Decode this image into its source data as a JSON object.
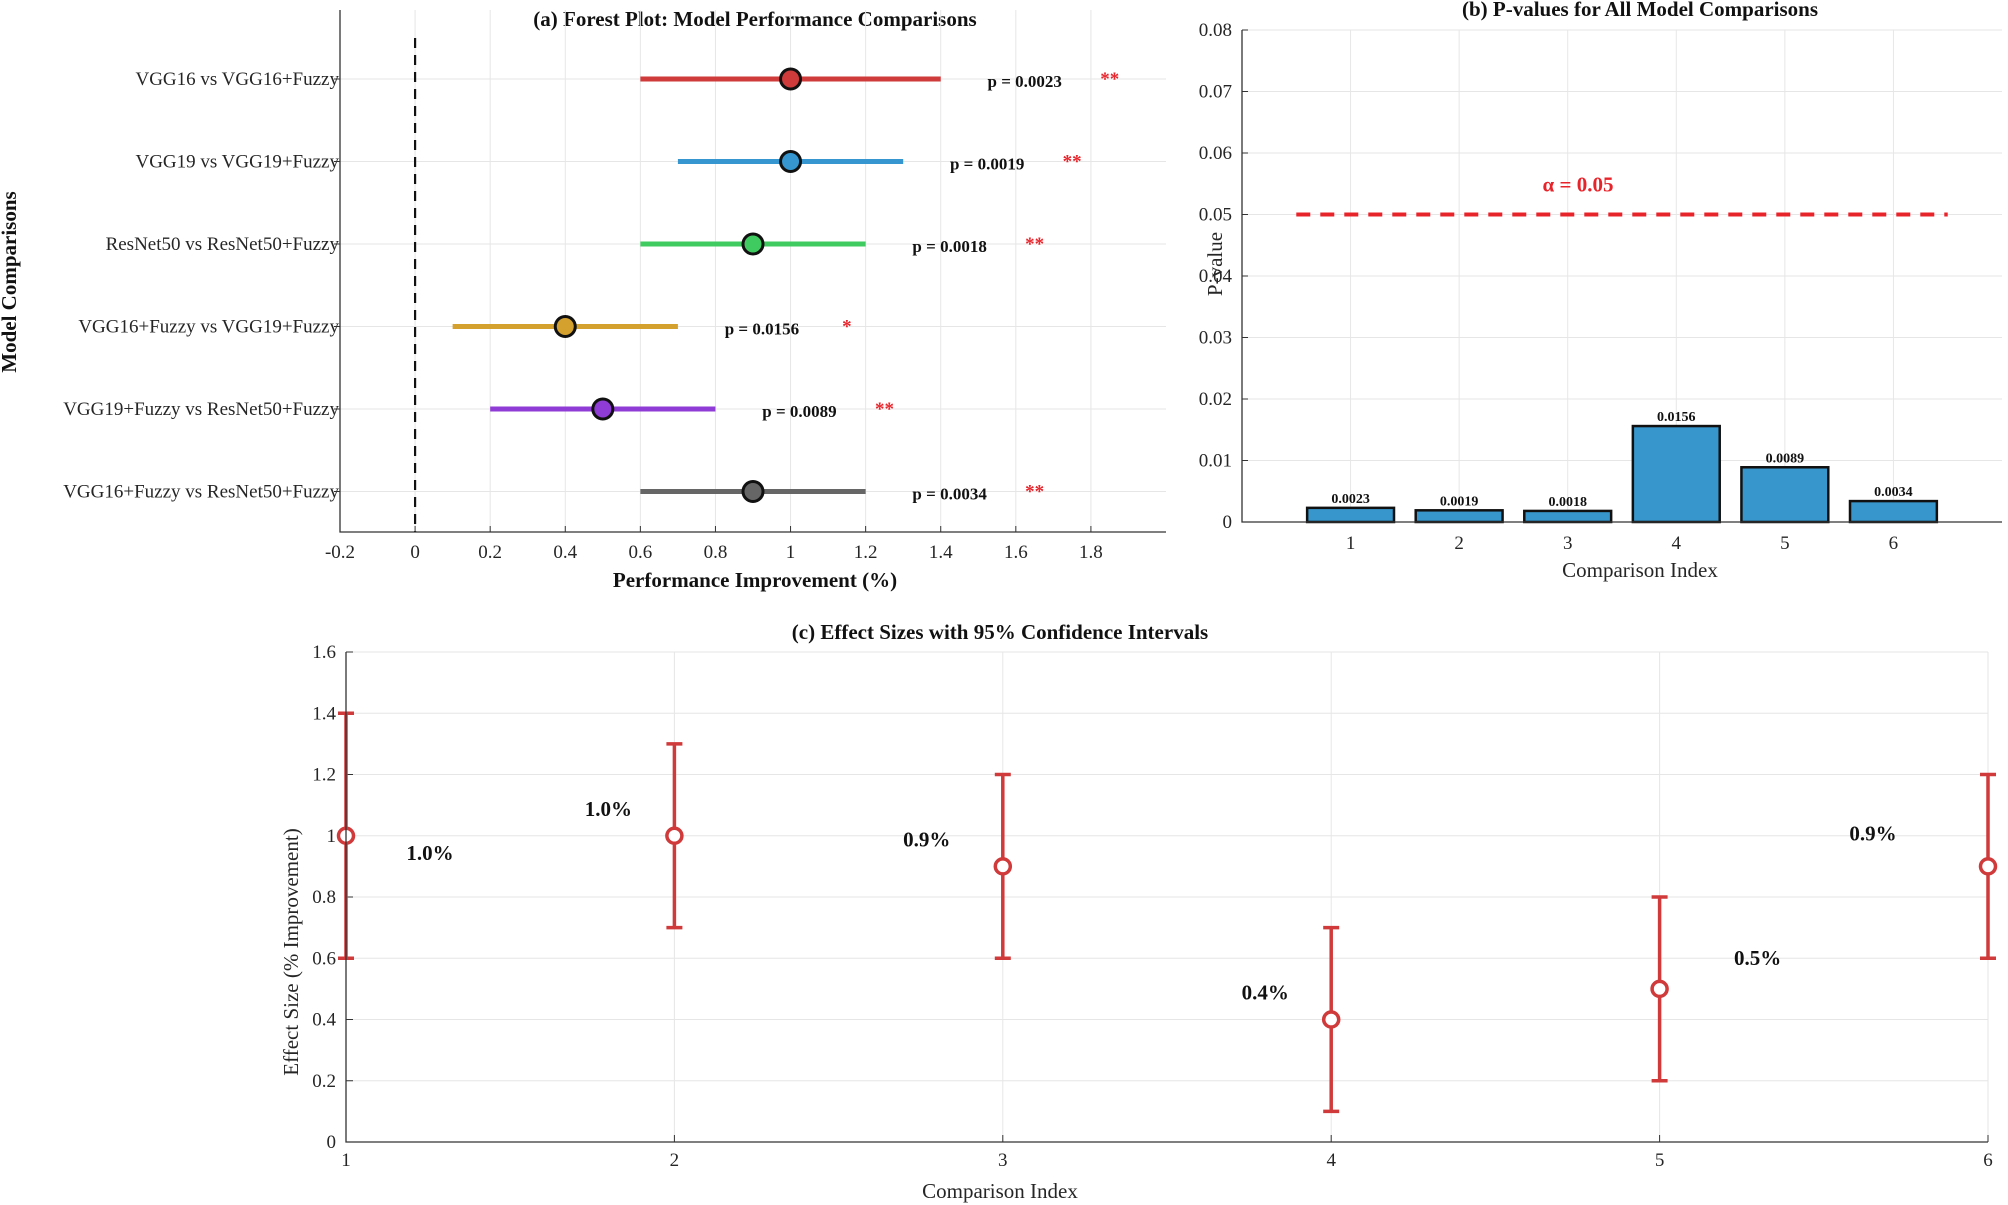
{
  "chart_data": [
    {
      "id": "forest",
      "type": "forest",
      "title": "(a) Forest Plot: Model Performance Comparisons",
      "xlabel": "Performance Improvement (%)",
      "ylabel": "Model Comparisons",
      "xlim": [
        -0.2,
        2.0
      ],
      "xticks": [
        -0.2,
        0,
        0.2,
        0.4,
        0.6,
        0.8,
        1,
        1.2,
        1.4,
        1.6,
        1.8
      ],
      "xtick_labels": [
        "-0.2",
        "0",
        "0.2",
        "0.4",
        "0.6",
        "0.8",
        "1",
        "1.2",
        "1.4",
        "1.6",
        "1.8"
      ],
      "reference_line": 0,
      "rows": [
        {
          "label": "VGG16 vs VGG16+Fuzzy",
          "estimate": 1.0,
          "lower": 0.6,
          "upper": 1.4,
          "p_text": "p = 0.0023",
          "sig": "**",
          "color": "#cf3a3a"
        },
        {
          "label": "VGG19 vs VGG19+Fuzzy",
          "estimate": 1.0,
          "lower": 0.7,
          "upper": 1.3,
          "p_text": "p = 0.0019",
          "sig": "**",
          "color": "#3596d0"
        },
        {
          "label": "ResNet50 vs ResNet50+Fuzzy",
          "estimate": 0.9,
          "lower": 0.6,
          "upper": 1.2,
          "p_text": "p = 0.0018",
          "sig": "**",
          "color": "#3fcb5f"
        },
        {
          "label": "VGG16+Fuzzy vs VGG19+Fuzzy",
          "estimate": 0.4,
          "lower": 0.1,
          "upper": 0.7,
          "p_text": "p = 0.0156",
          "sig": "*",
          "color": "#d4a02e"
        },
        {
          "label": "VGG19+Fuzzy vs ResNet50+Fuzzy",
          "estimate": 0.5,
          "lower": 0.2,
          "upper": 0.8,
          "p_text": "p = 0.0089",
          "sig": "**",
          "color": "#8f3bd6"
        },
        {
          "label": "VGG16+Fuzzy vs ResNet50+Fuzzy",
          "estimate": 0.9,
          "lower": 0.6,
          "upper": 1.2,
          "p_text": "p = 0.0034",
          "sig": "**",
          "color": "#666666"
        }
      ]
    },
    {
      "id": "pvalues",
      "type": "bar",
      "title": "(b) P-values for All Model Comparisons",
      "xlabel": "Comparison Index",
      "ylabel": "P-value",
      "categories": [
        "1",
        "2",
        "3",
        "4",
        "5",
        "6"
      ],
      "values": [
        0.0023,
        0.0019,
        0.0018,
        0.0156,
        0.0089,
        0.0034
      ],
      "value_labels": [
        "0.0023",
        "0.0019",
        "0.0018",
        "0.0156",
        "0.0089",
        "0.0034"
      ],
      "ylim": [
        0,
        0.08
      ],
      "yticks": [
        0,
        0.01,
        0.02,
        0.03,
        0.04,
        0.05,
        0.06,
        0.07,
        0.08
      ],
      "ytick_labels": [
        "0",
        "0.01",
        "0.02",
        "0.03",
        "0.04",
        "0.05",
        "0.06",
        "0.07",
        "0.08"
      ],
      "threshold": 0.05,
      "threshold_range": [
        0.5,
        6.5
      ],
      "threshold_label": "α = 0.05",
      "bar_color": "#3796cc",
      "threshold_color": "#e8242b"
    },
    {
      "id": "effects",
      "type": "errorbar",
      "title": "(c) Effect Sizes with 95% Confidence Intervals",
      "xlabel": "Comparison Index",
      "ylabel": "Effect Size (% Improvement)",
      "x": [
        1,
        2,
        3,
        4,
        5,
        6
      ],
      "values": [
        1.0,
        1.0,
        0.9,
        0.4,
        0.5,
        0.9
      ],
      "lower": [
        0.6,
        0.7,
        0.6,
        0.1,
        0.2,
        0.6
      ],
      "upper": [
        1.4,
        1.3,
        1.2,
        0.7,
        0.8,
        1.2
      ],
      "value_labels": [
        "1.0%",
        "1.0%",
        "0.9%",
        "0.4%",
        "0.5%",
        "0.9%"
      ],
      "xlim": [
        1,
        6
      ],
      "xticks": [
        1,
        2,
        3,
        4,
        5,
        6
      ],
      "xtick_labels": [
        "1",
        "2",
        "3",
        "4",
        "5",
        "6"
      ],
      "ylim": [
        0,
        1.6
      ],
      "yticks": [
        0,
        0.2,
        0.4,
        0.6,
        0.8,
        1,
        1.2,
        1.4,
        1.6
      ],
      "ytick_labels": [
        "0",
        "0.2",
        "0.4",
        "0.6",
        "0.8",
        "1",
        "1.2",
        "1.4",
        "1.6"
      ],
      "color": "#d03a3a"
    }
  ]
}
